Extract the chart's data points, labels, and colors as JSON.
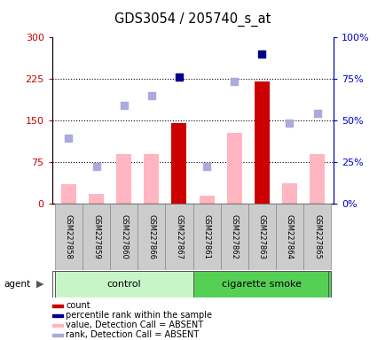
{
  "title": "GDS3054 / 205740_s_at",
  "samples": [
    "GSM227858",
    "GSM227859",
    "GSM227860",
    "GSM227866",
    "GSM227867",
    "GSM227861",
    "GSM227862",
    "GSM227863",
    "GSM227864",
    "GSM227865"
  ],
  "groups": [
    "control",
    "control",
    "control",
    "control",
    "control",
    "cigarette smoke",
    "cigarette smoke",
    "cigarette smoke",
    "cigarette smoke",
    "cigarette smoke"
  ],
  "ylim_left": [
    0,
    300
  ],
  "ylim_right": [
    0,
    100
  ],
  "yticks_left": [
    0,
    75,
    150,
    225,
    300
  ],
  "ytick_labels_left": [
    "0",
    "75",
    "150",
    "225",
    "300"
  ],
  "yticks_right": [
    0,
    25,
    50,
    75,
    100
  ],
  "ytick_labels_right": [
    "0%",
    "25%",
    "50%",
    "75%",
    "100%"
  ],
  "hlines": [
    75,
    150,
    225
  ],
  "count_bars": {
    "values": [
      null,
      null,
      null,
      null,
      145,
      null,
      null,
      221,
      null,
      null
    ],
    "color": "#cc0000"
  },
  "value_absent_bars": {
    "values": [
      35,
      18,
      90,
      90,
      null,
      15,
      128,
      null,
      38,
      90
    ],
    "color": "#ffb6c1"
  },
  "percentile_rank_dots_left_scale": {
    "values": [
      null,
      null,
      null,
      null,
      228,
      null,
      null,
      270,
      null,
      null
    ],
    "color": "#00008B"
  },
  "rank_absent_dots_left_scale": {
    "values": [
      118,
      68,
      178,
      195,
      null,
      68,
      220,
      null,
      145,
      163
    ],
    "color": "#aaaadd"
  },
  "legend_items": [
    {
      "color": "#cc0000",
      "label": "count"
    },
    {
      "color": "#00008B",
      "label": "percentile rank within the sample"
    },
    {
      "color": "#ffb6c1",
      "label": "value, Detection Call = ABSENT"
    },
    {
      "color": "#aaaadd",
      "label": "rank, Detection Call = ABSENT"
    }
  ],
  "right_axis_color": "#0000cc",
  "left_axis_color": "#cc0000",
  "bar_width": 0.55,
  "dot_size": 35
}
